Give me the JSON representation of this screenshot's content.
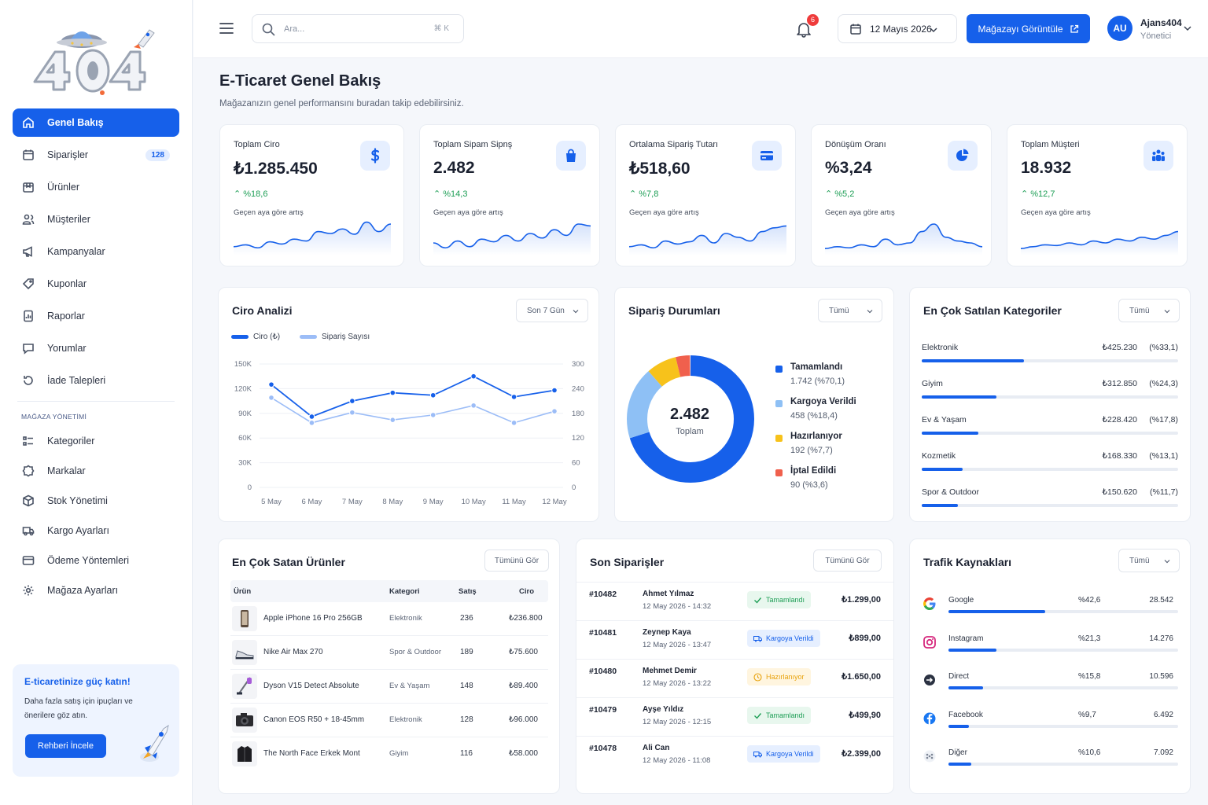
{
  "sidebar": {
    "nav": [
      {
        "label": "Genel Bakış",
        "icon": "home-icon",
        "active": true
      },
      {
        "label": "Siparişler",
        "icon": "calendar-icon",
        "badge": "128"
      },
      {
        "label": "Ürünler",
        "icon": "box-icon"
      },
      {
        "label": "Müşteriler",
        "icon": "users-icon"
      },
      {
        "label": "Kampanyalar",
        "icon": "megaphone-icon"
      },
      {
        "label": "Kuponlar",
        "icon": "tag-icon"
      },
      {
        "label": "Raporlar",
        "icon": "report-icon"
      },
      {
        "label": "Yorumlar",
        "icon": "comment-icon"
      },
      {
        "label": "İade Talepleri",
        "icon": "return-icon"
      }
    ],
    "section_title": "MAĞAZA YÖNETİMİ",
    "nav2": [
      {
        "label": "Kategoriler",
        "icon": "list-icon"
      },
      {
        "label": "Markalar",
        "icon": "badge-icon"
      },
      {
        "label": "Stok Yönetimi",
        "icon": "cube-icon"
      },
      {
        "label": "Kargo Ayarları",
        "icon": "truck-icon"
      },
      {
        "label": "Ödeme Yöntemleri",
        "icon": "card-icon"
      },
      {
        "label": "Mağaza Ayarları",
        "icon": "gear-icon"
      }
    ],
    "promo": {
      "title": "E-ticaretinize güç katın!",
      "text": "Daha fazla satış için ipuçları ve önerilere göz atın.",
      "button": "Rehberi İncele"
    }
  },
  "topbar": {
    "search_placeholder": "Ara...",
    "search_shortcut": "⌘ K",
    "notification_count": "6",
    "date": "12 Mayıs 2026",
    "store_button": "Mağazayı Görüntüle",
    "avatar_initials": "AU",
    "user_name": "Ajans404",
    "user_role": "Yönetici"
  },
  "page": {
    "title": "E-Ticaret Genel Bakış",
    "subtitle": "Mağazanızın genel performansını buradan takip edebilirsiniz."
  },
  "kpis": [
    {
      "label": "Toplam Ciro",
      "value": "₺1.285.450",
      "change": "%18,6",
      "note": "Geçen aya göre artış",
      "icon": "dollar-icon",
      "spark": [
        0.15,
        0.2,
        0.12,
        0.28,
        0.22,
        0.35,
        0.3,
        0.55,
        0.5,
        0.62,
        0.48,
        0.8,
        0.55,
        0.75
      ]
    },
    {
      "label": "Toplam Sipam Sipnş",
      "value": "2.482",
      "change": "%14,3",
      "note": "Geçen aya göre artış",
      "icon": "bag-icon",
      "spark": [
        0.25,
        0.12,
        0.3,
        0.15,
        0.35,
        0.28,
        0.45,
        0.3,
        0.5,
        0.38,
        0.6,
        0.45,
        0.75,
        0.7
      ]
    },
    {
      "label": "Ortalama Sipariş Tutarı",
      "value": "₺518,60",
      "change": "%7,8",
      "note": "Geçen aya göre artış",
      "icon": "creditcard-icon",
      "spark": [
        0.15,
        0.2,
        0.12,
        0.3,
        0.22,
        0.28,
        0.45,
        0.25,
        0.5,
        0.4,
        0.3,
        0.55,
        0.65,
        0.7
      ]
    },
    {
      "label": "Dönüşüm Oranı",
      "value": "%3,24",
      "change": "%5,2",
      "note": "Geçen aya göre artış",
      "icon": "piechart-icon",
      "spark": [
        0.1,
        0.15,
        0.12,
        0.2,
        0.15,
        0.35,
        0.2,
        0.25,
        0.55,
        0.75,
        0.4,
        0.3,
        0.25,
        0.15
      ]
    },
    {
      "label": "Toplam Müşteri",
      "value": "18.932",
      "change": "%12,7",
      "note": "Geçen aya göre artış",
      "icon": "users-icon",
      "spark": [
        0.1,
        0.15,
        0.2,
        0.18,
        0.25,
        0.2,
        0.3,
        0.25,
        0.35,
        0.3,
        0.4,
        0.35,
        0.45,
        0.55
      ]
    }
  ],
  "chart_data": {
    "type": "line",
    "title": "Ciro Analizi",
    "filter": "Son 7 Gün",
    "categories": [
      "5 May",
      "6 May",
      "7 May",
      "8 May",
      "9 May",
      "10 May",
      "11 May",
      "12 May"
    ],
    "y_left_ticks": [
      "150K",
      "120K",
      "90K",
      "60K",
      "30K",
      "0"
    ],
    "y_right_ticks": [
      "300",
      "240",
      "180",
      "120",
      "60",
      "0"
    ],
    "ylim_left": [
      0,
      150000
    ],
    "ylim_right": [
      0,
      300
    ],
    "series": [
      {
        "name": "Ciro (₺)",
        "axis": "left",
        "color": "#1660ea",
        "values": [
          125000,
          86000,
          105000,
          115000,
          112000,
          135000,
          110000,
          118000
        ]
      },
      {
        "name": "Sipariş Sayısı",
        "axis": "right",
        "color": "#9cbdf7",
        "values": [
          218,
          157,
          182,
          164,
          176,
          199,
          157,
          185
        ]
      }
    ],
    "grid": true,
    "legend": "top-left"
  },
  "order_status": {
    "title": "Sipariş Durumları",
    "filter": "Tümü",
    "total": "2.482",
    "total_label": "Toplam",
    "items": [
      {
        "name": "Tamamlandı",
        "value": "1.742 (%70,1)",
        "pct": 70.1,
        "color": "#1660ea"
      },
      {
        "name": "Kargoya Verildi",
        "value": "458 (%18,4)",
        "pct": 18.4,
        "color": "#8ec0f5"
      },
      {
        "name": "Hazırlanıyor",
        "value": "192 (%7,7)",
        "pct": 7.7,
        "color": "#f7c21b"
      },
      {
        "name": "İptal Edildi",
        "value": "90 (%3,6)",
        "pct": 3.6,
        "color": "#f0604d"
      }
    ]
  },
  "top_categories": {
    "title": "En Çok Satılan Kategoriler",
    "filter": "Tümü",
    "items": [
      {
        "name": "Elektronik",
        "amount": "₺425.230",
        "pct": "(%33,1)",
        "fill": 0.4
      },
      {
        "name": "Giyim",
        "amount": "₺312.850",
        "pct": "(%24,3)",
        "fill": 0.29
      },
      {
        "name": "Ev & Yaşam",
        "amount": "₺228.420",
        "pct": "(%17,8)",
        "fill": 0.22
      },
      {
        "name": "Kozmetik",
        "amount": "₺168.330",
        "pct": "(%13,1)",
        "fill": 0.16
      },
      {
        "name": "Spor & Outdoor",
        "amount": "₺150.620",
        "pct": "(%11,7)",
        "fill": 0.14
      }
    ]
  },
  "top_products": {
    "title": "En Çok Satan Ürünler",
    "button": "Tümünü Gör",
    "headers": [
      "Ürün",
      "Kategori",
      "Satış",
      "Ciro"
    ],
    "rows": [
      {
        "name": "Apple iPhone 16 Pro 256GB",
        "category": "Elektronik",
        "sales": "236",
        "revenue": "₺236.800",
        "icon": "phone-icon"
      },
      {
        "name": "Nike Air Max 270",
        "category": "Spor & Outdoor",
        "sales": "189",
        "revenue": "₺75.600",
        "icon": "shoe-icon"
      },
      {
        "name": "Dyson V15 Detect Absolute",
        "category": "Ev & Yaşam",
        "sales": "148",
        "revenue": "₺89.400",
        "icon": "vacuum-icon"
      },
      {
        "name": "Canon EOS R50 + 18-45mm",
        "category": "Elektronik",
        "sales": "128",
        "revenue": "₺96.000",
        "icon": "camera-icon"
      },
      {
        "name": "The North Face Erkek Mont",
        "category": "Giyim",
        "sales": "116",
        "revenue": "₺58.000",
        "icon": "jacket-icon"
      }
    ]
  },
  "recent_orders": {
    "title": "Son Siparişler",
    "button": "Tümünü Gör",
    "rows": [
      {
        "id": "#10482",
        "customer": "Ahmet Yılmaz",
        "date": "12 May 2026 - 14:32",
        "status": "Tamamlandı",
        "status_type": "done",
        "amount": "₺1.299,00"
      },
      {
        "id": "#10481",
        "customer": "Zeynep Kaya",
        "date": "12 May 2026 - 13:47",
        "status": "Kargoya Verildi",
        "status_type": "ship",
        "amount": "₺899,00"
      },
      {
        "id": "#10480",
        "customer": "Mehmet Demir",
        "date": "12 May 2026 - 13:22",
        "status": "Hazırlanıyor",
        "status_type": "prep",
        "amount": "₺1.650,00"
      },
      {
        "id": "#10479",
        "customer": "Ayşe Yıldız",
        "date": "12 May 2026 - 12:15",
        "status": "Tamamlandı",
        "status_type": "done",
        "amount": "₺499,90"
      },
      {
        "id": "#10478",
        "customer": "Ali Can",
        "date": "12 May 2026 - 11:08",
        "status": "Kargoya Verildi",
        "status_type": "ship",
        "amount": "₺2.399,00"
      }
    ]
  },
  "traffic": {
    "title": "Trafik Kaynakları",
    "filter": "Tümü",
    "rows": [
      {
        "name": "Google",
        "pct": "%42,6",
        "value": "28.542",
        "fill": 0.42,
        "icon": "google-icon"
      },
      {
        "name": "Instagram",
        "pct": "%21,3",
        "value": "14.276",
        "fill": 0.21,
        "icon": "instagram-icon"
      },
      {
        "name": "Direct",
        "pct": "%15,8",
        "value": "10.596",
        "fill": 0.15,
        "icon": "direct-icon"
      },
      {
        "name": "Facebook",
        "pct": "%9,7",
        "value": "6.492",
        "fill": 0.09,
        "icon": "facebook-icon"
      },
      {
        "name": "Diğer",
        "pct": "%10,6",
        "value": "7.092",
        "fill": 0.1,
        "icon": "other-icon"
      }
    ]
  }
}
